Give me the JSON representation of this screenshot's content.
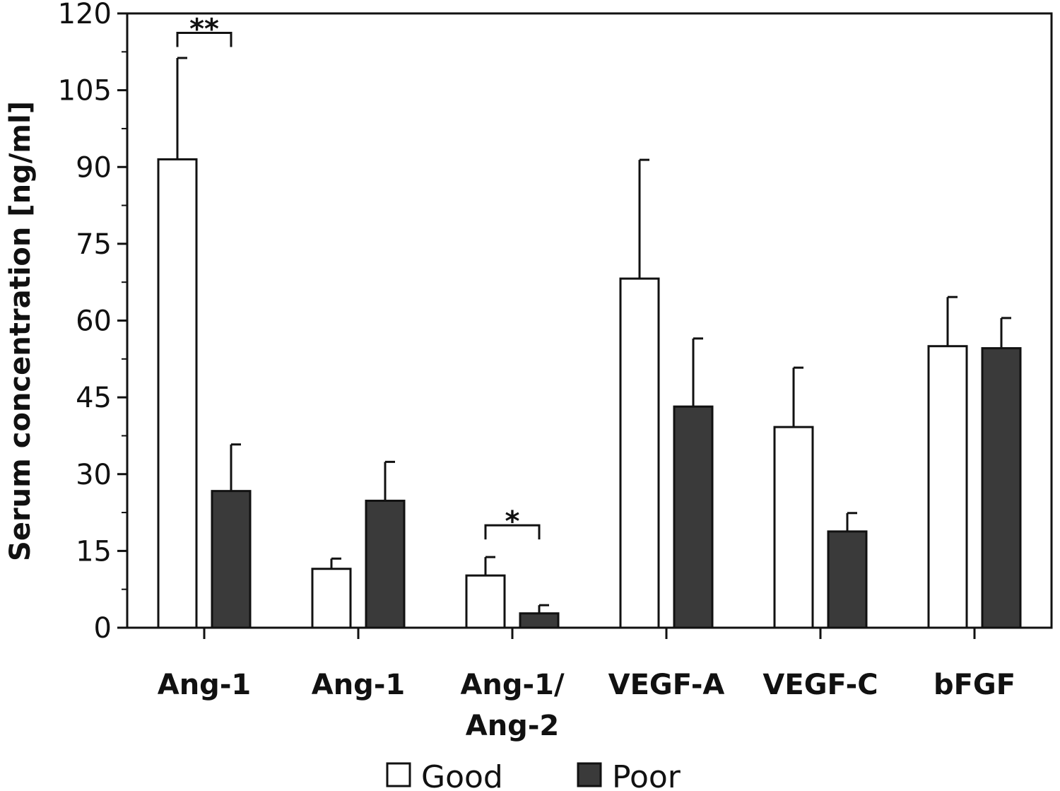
{
  "chart_data": {
    "type": "bar",
    "title": "",
    "xlabel": "",
    "ylabel": "Serum concentration [ng/ml]",
    "ylim": [
      0,
      120
    ],
    "yticks": [
      0,
      15,
      30,
      45,
      60,
      75,
      90,
      105,
      120
    ],
    "grid": false,
    "legend_placement": "bottom",
    "categories": [
      {
        "lines": [
          "Ang-1"
        ]
      },
      {
        "lines": [
          "Ang-1"
        ]
      },
      {
        "lines": [
          "Ang-1/",
          "Ang-2"
        ]
      },
      {
        "lines": [
          "VEGF-A"
        ]
      },
      {
        "lines": [
          "VEGF-C"
        ]
      },
      {
        "lines": [
          "bFGF"
        ]
      }
    ],
    "series": [
      {
        "name": "Good",
        "color": "#ffffff",
        "values": [
          91.5,
          11.5,
          10.2,
          68.2,
          39.2,
          55.0
        ],
        "errors": [
          19.8,
          2.0,
          3.6,
          23.2,
          11.6,
          9.6
        ]
      },
      {
        "name": "Poor",
        "color": "#3a3a3a",
        "values": [
          26.7,
          24.8,
          2.8,
          43.2,
          18.8,
          54.6
        ],
        "errors": [
          9.1,
          7.6,
          1.6,
          13.3,
          3.6,
          5.9
        ]
      }
    ],
    "annotations": [
      {
        "category": 0,
        "text": "**",
        "y": 116.2
      },
      {
        "category": 2,
        "text": "*",
        "y": 20.0
      }
    ]
  }
}
